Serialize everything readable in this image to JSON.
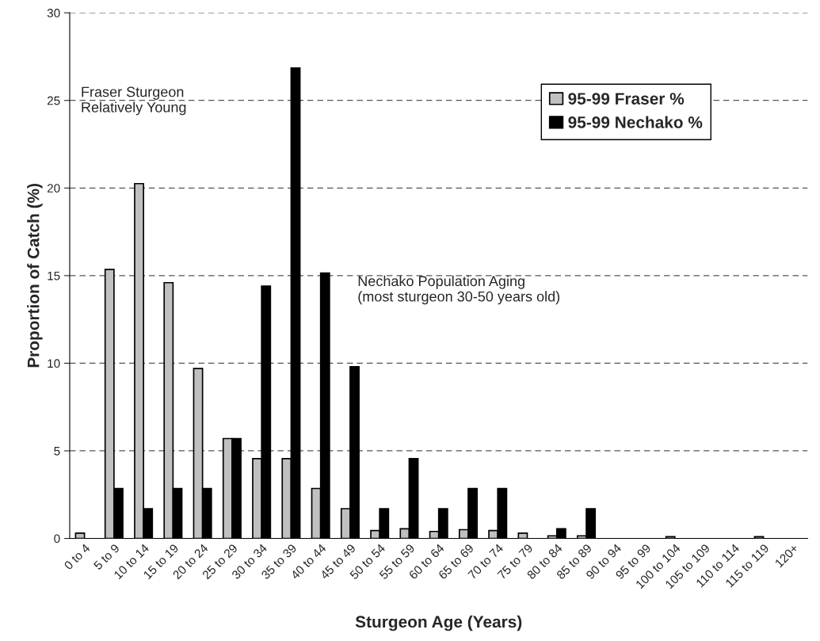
{
  "chart_data": {
    "type": "bar",
    "xlabel": "Sturgeon Age (Years)",
    "ylabel": "Proportion of Catch (%)",
    "categories": [
      "0 to 4",
      "5 to 9",
      "10 to 14",
      "15 to 19",
      "20 to 24",
      "25 to 29",
      "30 to 34",
      "35 to 39",
      "40 to 44",
      "45 to 49",
      "50 to 54",
      "55 to 59",
      "60 to 64",
      "65 to 69",
      "70 to 74",
      "75 to 79",
      "80 to 84",
      "85 to 89",
      "90 to 94",
      "95 to 99",
      "100 to 104",
      "105 to 109",
      "110 to 114",
      "115 to 119",
      "120+"
    ],
    "series": [
      {
        "name": "95-99 Fraser %",
        "color": "#c0c0c0",
        "values": [
          0.3,
          15.35,
          20.25,
          14.6,
          9.7,
          5.7,
          4.55,
          4.55,
          2.85,
          1.7,
          0.45,
          0.55,
          0.4,
          0.5,
          0.45,
          0.3,
          0.15,
          0.15,
          null,
          null,
          0.1,
          null,
          null,
          0.1,
          null
        ]
      },
      {
        "name": "95-99 Nechako %",
        "color": "#000000",
        "values": [
          null,
          2.85,
          1.7,
          2.85,
          2.85,
          5.7,
          14.4,
          26.85,
          15.15,
          9.8,
          1.7,
          4.55,
          1.7,
          2.85,
          2.85,
          null,
          0.55,
          1.7,
          null,
          null,
          null,
          null,
          null,
          null,
          null
        ]
      }
    ],
    "ylim": [
      0,
      30
    ],
    "yticks": [
      0,
      5,
      10,
      15,
      20,
      25,
      30
    ],
    "grid": "y",
    "legend": "top right",
    "annotations": [
      "Fraser Sturgeon\nRelatively Young",
      "Nechako Population Aging\n(most sturgeon 30-50 years old)"
    ]
  }
}
